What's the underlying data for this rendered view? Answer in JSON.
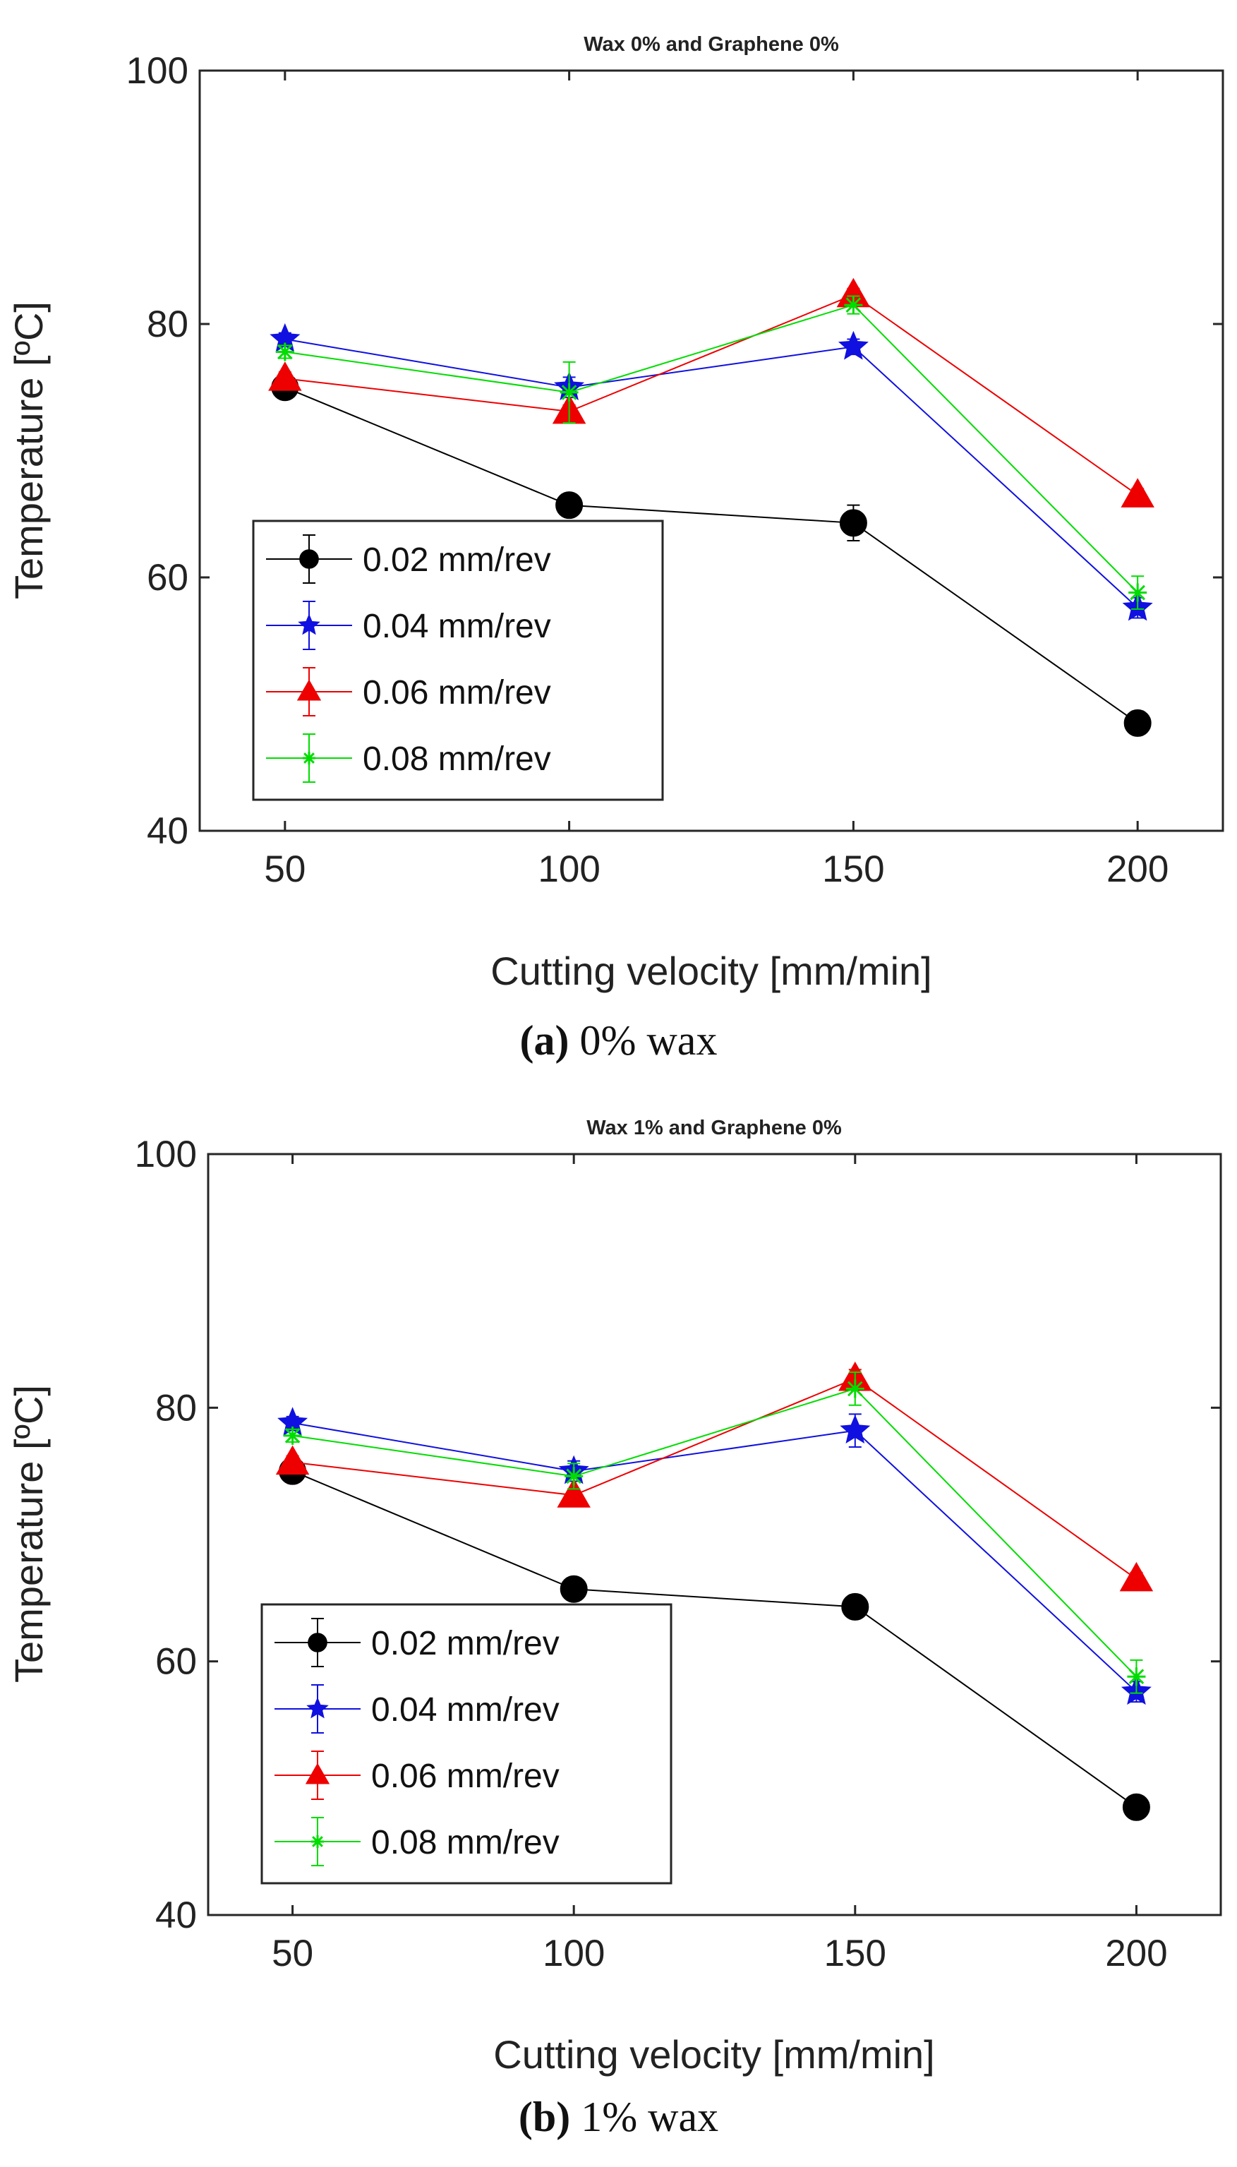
{
  "chart_data": [
    {
      "type": "line",
      "title": "Wax 0% and Graphene 0%",
      "xlabel": "Cutting velocity [mm/min]",
      "ylabel": "Temperature [ºC]",
      "x": [
        50,
        100,
        150,
        200
      ],
      "xlim": [
        35,
        215
      ],
      "ylim": [
        40,
        100
      ],
      "xticks": [
        "50",
        "100",
        "150",
        "200"
      ],
      "yticks": [
        "40",
        "60",
        "80",
        "100"
      ],
      "legend_position": "bottom-left",
      "series": [
        {
          "name": "0.02 mm/rev",
          "color": "#000000",
          "marker": "circle",
          "values": [
            75,
            65.7,
            64.3,
            48.5
          ],
          "errors": [
            0.5,
            0.5,
            1.4,
            0.5
          ]
        },
        {
          "name": "0.04 mm/rev",
          "color": "#1010e0",
          "marker": "star",
          "values": [
            78.8,
            75,
            78.2,
            57.6
          ],
          "errors": [
            0.5,
            0.8,
            0.6,
            0.8
          ]
        },
        {
          "name": "0.06 mm/rev",
          "color": "#ee0000",
          "marker": "triangle",
          "values": [
            75.7,
            73.1,
            82.3,
            66.5
          ],
          "errors": [
            0.5,
            0.5,
            0.5,
            0.5
          ]
        },
        {
          "name": "0.08 mm/rev",
          "color": "#00dd00",
          "marker": "asterisk",
          "values": [
            77.8,
            74.6,
            81.5,
            58.8
          ],
          "errors": [
            0.5,
            2.4,
            0.7,
            1.3
          ]
        }
      ],
      "caption_label": "(a)",
      "caption_text": " 0% wax"
    },
    {
      "type": "line",
      "title": "Wax 1% and Graphene 0%",
      "xlabel": "Cutting velocity [mm/min]",
      "ylabel": "Temperature [ºC]",
      "x": [
        50,
        100,
        150,
        200
      ],
      "xlim": [
        35,
        215
      ],
      "ylim": [
        40,
        100
      ],
      "xticks": [
        "50",
        "100",
        "150",
        "200"
      ],
      "yticks": [
        "40",
        "60",
        "80",
        "100"
      ],
      "legend_position": "bottom-left",
      "series": [
        {
          "name": "0.02 mm/rev",
          "color": "#000000",
          "marker": "circle",
          "values": [
            75,
            65.7,
            64.3,
            48.5
          ],
          "errors": [
            0.5,
            0.5,
            0.5,
            0.5
          ]
        },
        {
          "name": "0.04 mm/rev",
          "color": "#1010e0",
          "marker": "star",
          "values": [
            78.8,
            75,
            78.2,
            57.6
          ],
          "errors": [
            0.5,
            0.8,
            1.3,
            0.8
          ]
        },
        {
          "name": "0.06 mm/rev",
          "color": "#ee0000",
          "marker": "triangle",
          "values": [
            75.7,
            73.1,
            82.3,
            66.5
          ],
          "errors": [
            0.5,
            0.5,
            0.7,
            0.5
          ]
        },
        {
          "name": "0.08 mm/rev",
          "color": "#00dd00",
          "marker": "asterisk",
          "values": [
            77.8,
            74.6,
            81.5,
            58.8
          ],
          "errors": [
            0.5,
            1.0,
            1.3,
            1.3
          ]
        }
      ],
      "caption_label": "(b)",
      "caption_text": " 1% wax"
    }
  ]
}
